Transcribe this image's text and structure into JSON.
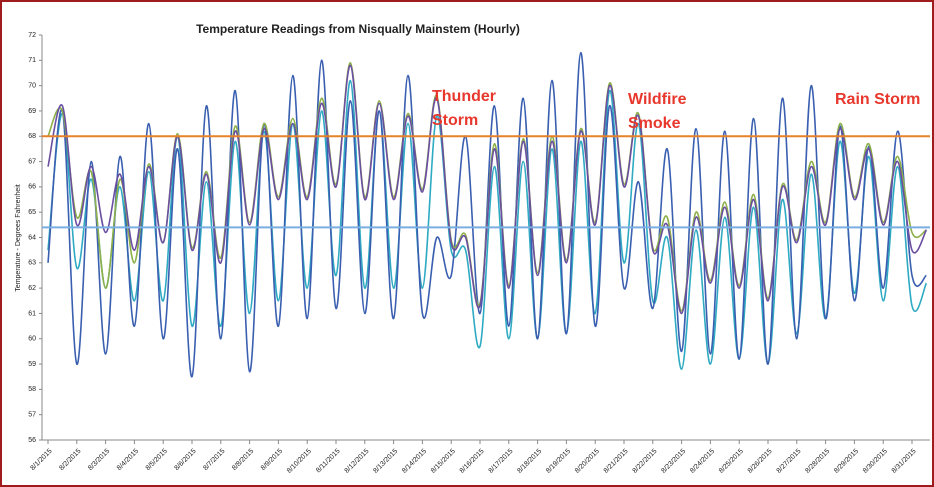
{
  "chart_data": {
    "type": "line",
    "title": "Temperature Readings from  Nisqually Mainstem (Hourly)",
    "y_label": "Temperature - Degrees Fahrenheit",
    "categories": [
      "8/1/2015",
      null,
      "8/2/2015",
      null,
      "8/3/2015",
      null,
      "8/4/2015",
      null,
      "8/5/2015",
      null,
      "8/6/2015",
      null,
      "8/7/2015",
      null,
      "8/8/2015",
      null,
      "8/9/2015",
      null,
      "8/10/2015",
      null,
      "8/11/2015",
      null,
      "8/12/2015",
      null,
      "8/13/2015",
      null,
      "8/14/2015",
      null,
      "8/15/2015",
      null,
      "8/16/2015",
      null,
      "8/17/2015",
      null,
      "8/18/2015",
      null,
      "8/19/2015",
      null,
      "8/20/2015",
      null,
      "8/21/2015",
      null,
      "8/22/2015",
      null,
      "8/23/2015",
      null,
      "8/24/2015",
      null,
      "8/25/2015",
      null,
      "8/26/2015",
      null,
      "8/27/2015",
      null,
      "8/28/2015",
      null,
      "8/29/2015",
      null,
      "8/30/2015",
      null,
      "8/31/2015",
      null
    ],
    "series": [
      {
        "color": "#2eaac2",
        "values": [
          63.5,
          68.9,
          62.8,
          66.3,
          62,
          66,
          61.5,
          66.6,
          61.5,
          68,
          60.5,
          66.2,
          60.5,
          67.8,
          61,
          68.2,
          61.5,
          68.5,
          62,
          69,
          62.5,
          70.2,
          62,
          69,
          62,
          68.5,
          62,
          68.8,
          63.5,
          63.5,
          59.7,
          66.8,
          60,
          67,
          60,
          67.5,
          60.2,
          67.8,
          61,
          69.8,
          63,
          68.5,
          61.5,
          64,
          58.8,
          64.3,
          59,
          64.8,
          59.2,
          65.2,
          59,
          65.5,
          60.2,
          66.5,
          60.8,
          67.8,
          61.8,
          67.2,
          61.5,
          66.8,
          61.3,
          62.2
        ]
      },
      {
        "color": "#3a5fb0",
        "values": [
          63,
          69,
          59,
          67,
          59.4,
          67.2,
          60.5,
          68.5,
          60,
          67.5,
          58.5,
          69.2,
          60,
          69.8,
          58.7,
          68.5,
          60.5,
          70.4,
          60.8,
          71,
          61.2,
          69.4,
          61,
          69,
          60.8,
          70.4,
          61,
          64,
          62.5,
          68,
          61,
          69.2,
          60.5,
          69.5,
          60,
          70.2,
          60.2,
          71.3,
          60.5,
          69.2,
          62,
          66.2,
          61.2,
          67.5,
          59.5,
          68.3,
          59.4,
          68.2,
          59.2,
          68.7,
          59,
          69.5,
          60,
          70,
          60.8,
          68.4,
          61.5,
          67.6,
          62,
          68.2,
          62.5,
          62.5
        ]
      },
      {
        "color": "#8db04a",
        "values": [
          68,
          69,
          64.8,
          66.6,
          62,
          66.3,
          63,
          66.9,
          63.8,
          68.1,
          63.6,
          66.6,
          63.2,
          68.4,
          64.6,
          68.5,
          65.6,
          68.7,
          65.6,
          69.5,
          66.1,
          70.9,
          65.6,
          69.4,
          65.6,
          68.9,
          65.9,
          69.6,
          63.9,
          64.1,
          61.4,
          67.7,
          62.1,
          67.9,
          62.6,
          68,
          63.1,
          68.3,
          64.6,
          70.1,
          66.1,
          68.9,
          63.6,
          64.8,
          61.1,
          65,
          62.3,
          65.4,
          62.1,
          65.7,
          61.6,
          66.1,
          63.9,
          67,
          64.6,
          68.5,
          65.6,
          67.7,
          64.6,
          67.2,
          64.2,
          64.3
        ]
      },
      {
        "color": "#6a4fa0",
        "values": [
          66.8,
          69.2,
          64.5,
          66.8,
          64.2,
          66.5,
          63.5,
          66.8,
          63.8,
          68,
          63.5,
          66.5,
          63,
          68.2,
          64.5,
          68.3,
          65.5,
          68.5,
          65.5,
          69.3,
          66,
          70.8,
          65.5,
          69.3,
          65.5,
          68.8,
          65.8,
          69.5,
          63.8,
          64,
          61.3,
          67.5,
          62,
          67.8,
          62.5,
          67.8,
          63,
          68.2,
          64.5,
          70,
          66,
          68.8,
          63.5,
          64.5,
          61,
          64.8,
          62.2,
          65.2,
          62,
          65.5,
          61.5,
          66,
          63.8,
          66.8,
          64.5,
          68.3,
          65.5,
          67.5,
          64.5,
          67,
          63.5,
          64.3
        ]
      }
    ],
    "reference_lines": [
      {
        "value": 68,
        "color": "#e8822a"
      },
      {
        "value": 64.4,
        "color": "#7aaee0"
      }
    ],
    "annotations": [
      [
        "Thunder",
        "Storm"
      ],
      [
        "Wildfire",
        "Smoke"
      ],
      [
        "Rain Storm"
      ]
    ],
    "annotation_color": "#e8372c",
    "ylim": [
      56,
      72
    ],
    "yticks": [
      56,
      57,
      58,
      59,
      60,
      61,
      62,
      63,
      64,
      65,
      66,
      67,
      68,
      69,
      70,
      71,
      72
    ]
  }
}
